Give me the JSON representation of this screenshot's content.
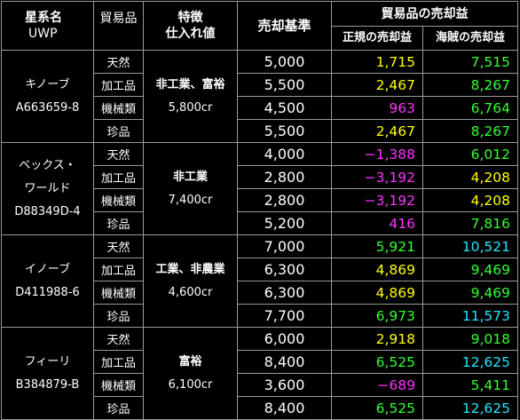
{
  "headers": {
    "star": "星系名",
    "uwp": "UWP",
    "goods": "貿易品",
    "feature": "特徴",
    "purchase": "仕入れ値",
    "sale_std": "売却基準",
    "profit": "貿易品の売却益",
    "legal": "正規の売却益",
    "pirate": "海賊の売却益"
  },
  "colors": {
    "yellow": "#ffff00",
    "magenta": "#ff33ff",
    "green": "#33ff33",
    "cyan": "#22e6ff"
  },
  "systems": [
    {
      "name": "キノーブ",
      "uwp": "A663659-8",
      "feature": "非工業、富裕",
      "purchase": "5,800cr",
      "rows": [
        {
          "type": "天然",
          "base": "5,000",
          "legal": "1,715",
          "legal_color": "yellow",
          "pirate": "7,515",
          "pirate_color": "green"
        },
        {
          "type": "加工品",
          "base": "5,500",
          "legal": "2,467",
          "legal_color": "yellow",
          "pirate": "8,267",
          "pirate_color": "green"
        },
        {
          "type": "機械類",
          "base": "4,500",
          "legal": "963",
          "legal_color": "magenta",
          "pirate": "6,764",
          "pirate_color": "green"
        },
        {
          "type": "珍品",
          "base": "5,500",
          "legal": "2,467",
          "legal_color": "yellow",
          "pirate": "8,267",
          "pirate_color": "green"
        }
      ]
    },
    {
      "name": "ベックス・\nワールド",
      "uwp": "D88349D-4",
      "feature": "非工業",
      "purchase": "7,400cr",
      "rows": [
        {
          "type": "天然",
          "base": "4,000",
          "legal": "−1,388",
          "legal_color": "magenta",
          "pirate": "6,012",
          "pirate_color": "green"
        },
        {
          "type": "加工品",
          "base": "2,800",
          "legal": "−3,192",
          "legal_color": "magenta",
          "pirate": "4,208",
          "pirate_color": "yellow"
        },
        {
          "type": "機械類",
          "base": "2,800",
          "legal": "−3,192",
          "legal_color": "magenta",
          "pirate": "4,208",
          "pirate_color": "yellow"
        },
        {
          "type": "珍品",
          "base": "5,200",
          "legal": "416",
          "legal_color": "magenta",
          "pirate": "7,816",
          "pirate_color": "green"
        }
      ]
    },
    {
      "name": "イノーブ",
      "uwp": "D411988-6",
      "feature": "工業、非農業",
      "purchase": "4,600cr",
      "rows": [
        {
          "type": "天然",
          "base": "7,000",
          "legal": "5,921",
          "legal_color": "green",
          "pirate": "10,521",
          "pirate_color": "cyan"
        },
        {
          "type": "加工品",
          "base": "6,300",
          "legal": "4,869",
          "legal_color": "yellow",
          "pirate": "9,469",
          "pirate_color": "green"
        },
        {
          "type": "機械類",
          "base": "6,300",
          "legal": "4,869",
          "legal_color": "yellow",
          "pirate": "9,469",
          "pirate_color": "green"
        },
        {
          "type": "珍品",
          "base": "7,700",
          "legal": "6,973",
          "legal_color": "green",
          "pirate": "11,573",
          "pirate_color": "cyan"
        }
      ]
    },
    {
      "name": "フィーリ",
      "uwp": "B384879-B",
      "feature": "富裕",
      "purchase": "6,100cr",
      "rows": [
        {
          "type": "天然",
          "base": "6,000",
          "legal": "2,918",
          "legal_color": "yellow",
          "pirate": "9,018",
          "pirate_color": "green"
        },
        {
          "type": "加工品",
          "base": "8,400",
          "legal": "6,525",
          "legal_color": "green",
          "pirate": "12,625",
          "pirate_color": "cyan"
        },
        {
          "type": "機械類",
          "base": "3,600",
          "legal": "−689",
          "legal_color": "magenta",
          "pirate": "5,411",
          "pirate_color": "green"
        },
        {
          "type": "珍品",
          "base": "8,400",
          "legal": "6,525",
          "legal_color": "green",
          "pirate": "12,625",
          "pirate_color": "cyan"
        }
      ]
    }
  ]
}
